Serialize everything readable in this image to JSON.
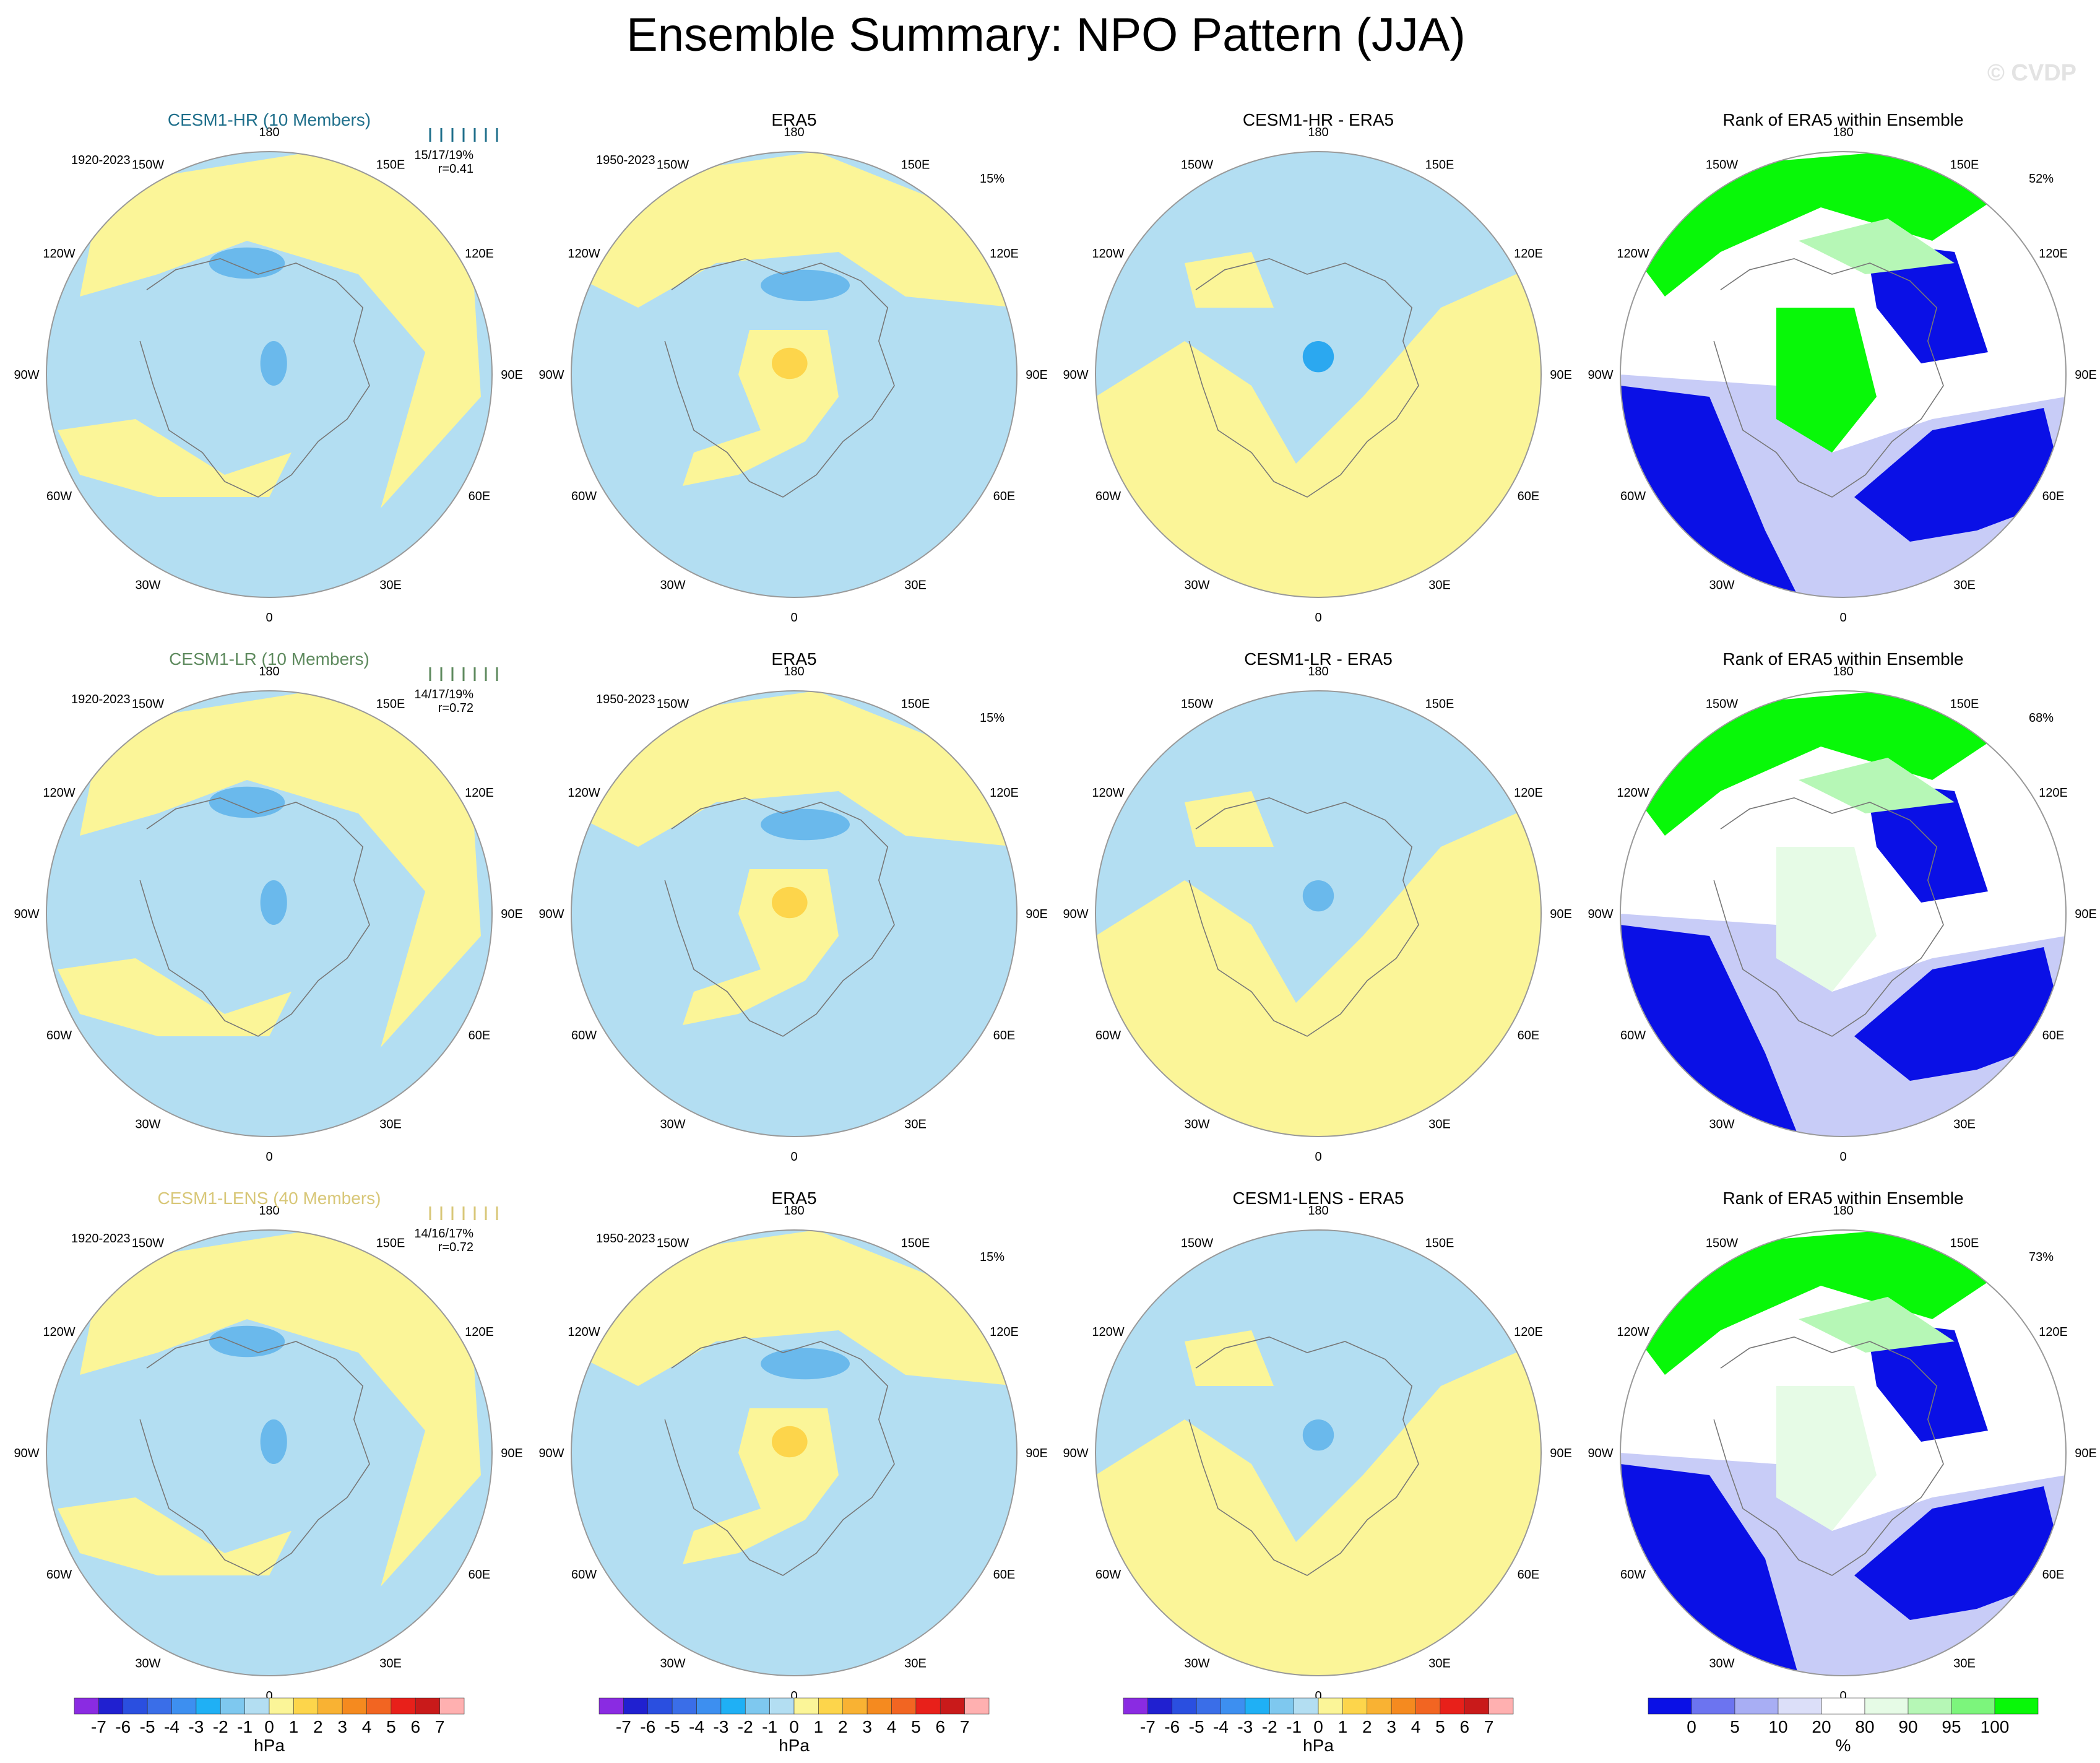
{
  "title": "Ensemble Summary: NPO Pattern (JJA)",
  "watermark": "© CVDP",
  "colors": {
    "land_neg": "#b3def2",
    "pos": "#fbf598",
    "neg2": "#6ab9ec",
    "neg3": "#2ba8f0",
    "pos2": "#fdd54b",
    "rank_low": "#0a10e6",
    "rank_low2": "#6c74f0",
    "rank_low3": "#c8ccf7",
    "rank_mid": "#ffffff",
    "rank_high3": "#e6fbe6",
    "rank_high2": "#b6f7b6",
    "rank_high": "#08f808",
    "hr_label": "#1f6f8b",
    "lr_label": "#5e8a5e",
    "lens_label": "#d8c778"
  },
  "lon_labels": [
    "180",
    "150E",
    "120E",
    "90E",
    "60E",
    "30E",
    "0",
    "30W",
    "60W",
    "90W",
    "120W",
    "150W"
  ],
  "rows": [
    {
      "member_label": "CESM1-HR (10 Members)",
      "member_color": "#1f6f8b",
      "model_period": "1920-2023",
      "model_stats": "15/17/19%",
      "model_r": "r=0.41",
      "obs_title": "ERA5",
      "obs_period": "1950-2023",
      "obs_pct": "15%",
      "diff_title": "CESM1-HR - ERA5",
      "rank_title": "Rank of ERA5 within Ensemble",
      "rank_pct": "52%"
    },
    {
      "member_label": "CESM1-LR (10 Members)",
      "member_color": "#5e8a5e",
      "model_period": "1920-2023",
      "model_stats": "14/17/19%",
      "model_r": "r=0.72",
      "obs_title": "ERA5",
      "obs_period": "1950-2023",
      "obs_pct": "15%",
      "diff_title": "CESM1-LR - ERA5",
      "rank_title": "Rank of ERA5 within Ensemble",
      "rank_pct": "68%"
    },
    {
      "member_label": "CESM1-LENS (40 Members)",
      "member_color": "#d8c778",
      "model_period": "1920-2023",
      "model_stats": "14/16/17%",
      "model_r": "r=0.72",
      "obs_title": "ERA5",
      "obs_period": "1950-2023",
      "obs_pct": "15%",
      "diff_title": "CESM1-LENS - ERA5",
      "rank_title": "Rank of ERA5 within Ensemble",
      "rank_pct": "73%"
    }
  ],
  "chart_data": {
    "type": "heatmap",
    "title": "Ensemble Summary: NPO Pattern (JJA)",
    "projection": "north polar stereographic",
    "hpa_colorbar": {
      "unit": "hPa",
      "tick_labels": [
        "-7",
        "-6",
        "-5",
        "-4",
        "-3",
        "-2",
        "-1",
        "0",
        "1",
        "2",
        "3",
        "4",
        "5",
        "6",
        "7"
      ],
      "colors": [
        "#8a2be2",
        "#2020d0",
        "#2a4fe0",
        "#3a6ee8",
        "#3d8ff0",
        "#1fb0f5",
        "#7ec8ef",
        "#b3def2",
        "#fbf598",
        "#fdd54b",
        "#f9b233",
        "#f58a1f",
        "#f26522",
        "#e8201a",
        "#c91a1a",
        "#ffb0b0"
      ]
    },
    "rank_colorbar": {
      "unit": "%",
      "tick_labels": [
        "0",
        "5",
        "10",
        "20",
        "80",
        "90",
        "95",
        "100"
      ],
      "colors": [
        "#0a10e6",
        "#6c74f0",
        "#a8aef4",
        "#dcdff9",
        "#ffffff",
        "#e6fbe6",
        "#b6f7b6",
        "#7cf57c",
        "#08f808"
      ]
    },
    "panels": [
      {
        "row": "CESM1-HR",
        "column": "model",
        "pct": "15/17/19%",
        "r": 0.41
      },
      {
        "row": "CESM1-HR",
        "column": "ERA5",
        "pct": "15%"
      },
      {
        "row": "CESM1-HR",
        "column": "difference"
      },
      {
        "row": "CESM1-HR",
        "column": "rank",
        "pct": "52%"
      },
      {
        "row": "CESM1-LR",
        "column": "model",
        "pct": "14/17/19%",
        "r": 0.72
      },
      {
        "row": "CESM1-LR",
        "column": "ERA5",
        "pct": "15%"
      },
      {
        "row": "CESM1-LR",
        "column": "difference"
      },
      {
        "row": "CESM1-LR",
        "column": "rank",
        "pct": "68%"
      },
      {
        "row": "CESM1-LENS",
        "column": "model",
        "pct": "14/16/17%",
        "r": 0.72
      },
      {
        "row": "CESM1-LENS",
        "column": "ERA5",
        "pct": "15%"
      },
      {
        "row": "CESM1-LENS",
        "column": "difference"
      },
      {
        "row": "CESM1-LENS",
        "column": "rank",
        "pct": "73%"
      }
    ]
  }
}
